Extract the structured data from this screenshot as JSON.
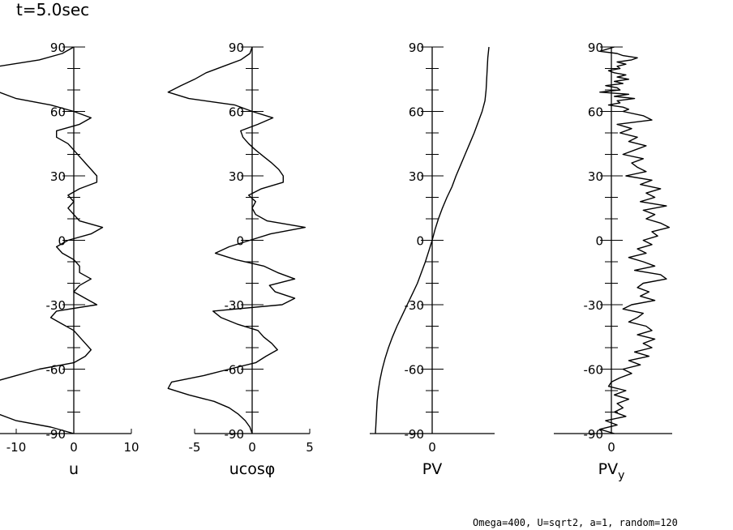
{
  "figure": {
    "title": "t=5.0sec",
    "footer": "Omega=400, U=sqrt2, a=1, random=120"
  },
  "chart_data": [
    {
      "type": "line",
      "id": "u",
      "xlabel": "u",
      "ylabel": "",
      "xlim": [
        -10,
        10
      ],
      "ylim": [
        -90,
        90
      ],
      "x_ticks": [
        "-10",
        "0",
        "10"
      ],
      "y_ticks": [
        "90",
        "60",
        "30",
        "0",
        "-30",
        "-60",
        "-90"
      ],
      "series": [
        {
          "name": "u",
          "lat": [
            90,
            87,
            84,
            81,
            78,
            75,
            72,
            69,
            66,
            63,
            60,
            57,
            54,
            51,
            48,
            45,
            42,
            39,
            36,
            33,
            30,
            27,
            24,
            21,
            18,
            15,
            12,
            9,
            6,
            3,
            0,
            -3,
            -6,
            -9,
            -12,
            -15,
            -18,
            -21,
            -24,
            -27,
            -30,
            -33,
            -36,
            -39,
            -42,
            -45,
            -48,
            -51,
            -54,
            -57,
            -60,
            -63,
            -66,
            -69,
            -72,
            -75,
            -78,
            -81,
            -84,
            -87,
            -90
          ],
          "values": [
            0,
            -2,
            -6,
            -13,
            -14,
            -14,
            -14,
            -13,
            -10,
            -4,
            0,
            3,
            1,
            -3,
            -3,
            -1,
            0,
            1,
            2,
            3,
            4,
            4,
            1,
            -1,
            0,
            -1,
            0,
            1,
            5,
            3,
            -1,
            -3,
            -2,
            0,
            1,
            1,
            3,
            1,
            0,
            2,
            4,
            -3,
            -4,
            -2,
            0,
            1,
            2,
            3,
            2,
            0,
            -6,
            -10,
            -14,
            -14,
            -14,
            -14,
            -14,
            -13,
            -10,
            -4,
            0
          ]
        }
      ]
    },
    {
      "type": "line",
      "id": "ucos",
      "xlabel": "ucosφ",
      "ylabel": "",
      "xlim": [
        -5,
        5
      ],
      "ylim": [
        -90,
        90
      ],
      "x_ticks": [
        "-5",
        "0",
        "5"
      ],
      "y_ticks": [
        "90",
        "60",
        "30",
        "0",
        "-30",
        "-60",
        "-90"
      ],
      "series": [
        {
          "name": "ucosφ",
          "lat": [
            90,
            87,
            84,
            81,
            78,
            75,
            72,
            69,
            66,
            63,
            60,
            57,
            54,
            51,
            48,
            45,
            42,
            39,
            36,
            33,
            30,
            27,
            24,
            21,
            18,
            15,
            12,
            9,
            6,
            3,
            0,
            -3,
            -6,
            -9,
            -12,
            -15,
            -18,
            -21,
            -24,
            -27,
            -30,
            -33,
            -36,
            -39,
            -42,
            -45,
            -48,
            -51,
            -54,
            -57,
            -60,
            -63,
            -66,
            -69,
            -72,
            -75,
            -78,
            -81,
            -84,
            -87,
            -90
          ],
          "values": [
            0,
            -0.2,
            -1,
            -2.5,
            -4,
            -5,
            -6.2,
            -7.3,
            -5.5,
            -1.5,
            0,
            1.8,
            0.5,
            -1,
            -0.8,
            -0.3,
            0.3,
            1,
            1.7,
            2.3,
            2.7,
            2.7,
            0.8,
            -0.3,
            0.3,
            0,
            0.3,
            1.3,
            4.6,
            1.6,
            -0.2,
            -2,
            -3.2,
            -1.4,
            1,
            2.2,
            3.7,
            1.5,
            2,
            3.7,
            2.6,
            -3.4,
            -2.7,
            -1.3,
            0.5,
            1,
            1.7,
            2.2,
            1.2,
            0.3,
            -2,
            -4.2,
            -7,
            -7.3,
            -5.5,
            -3.3,
            -2,
            -1.2,
            -0.6,
            -0.2,
            0
          ]
        }
      ]
    },
    {
      "type": "line",
      "id": "pv",
      "xlabel": "PV",
      "ylabel": "",
      "xlim": [
        -1.1,
        1.1
      ],
      "ylim": [
        -90,
        90
      ],
      "x_ticks": [
        "0"
      ],
      "y_ticks": [
        "90",
        "60",
        "30",
        "0",
        "-30",
        "-60",
        "-90"
      ],
      "series": [
        {
          "name": "PV",
          "lat": [
            90,
            85,
            80,
            75,
            70,
            65,
            60,
            55,
            50,
            45,
            40,
            35,
            30,
            25,
            20,
            15,
            10,
            5,
            0,
            -5,
            -10,
            -15,
            -20,
            -25,
            -30,
            -35,
            -40,
            -45,
            -50,
            -55,
            -60,
            -65,
            -70,
            -75,
            -80,
            -85,
            -90
          ],
          "values": [
            1,
            0.98,
            0.97,
            0.96,
            0.95,
            0.93,
            0.88,
            0.81,
            0.74,
            0.66,
            0.58,
            0.5,
            0.42,
            0.35,
            0.26,
            0.18,
            0.11,
            0.05,
            0,
            -0.06,
            -0.12,
            -0.19,
            -0.26,
            -0.35,
            -0.44,
            -0.53,
            -0.62,
            -0.7,
            -0.77,
            -0.83,
            -0.88,
            -0.92,
            -0.95,
            -0.97,
            -0.98,
            -0.99,
            -1
          ]
        }
      ]
    },
    {
      "type": "line",
      "id": "pvy",
      "xlabel": "PV",
      "xlabel_subscript": "y",
      "ylabel": "",
      "xlim": [
        -1,
        1.05
      ],
      "ylim": [
        -90,
        90
      ],
      "x_ticks": [
        "0"
      ],
      "y_ticks": [
        "90",
        "60",
        "30",
        "0",
        "-30",
        "-60",
        "-90"
      ],
      "series": [
        {
          "name": "PVy",
          "lat": [
            90,
            88,
            87,
            86,
            85,
            84,
            83,
            82,
            81,
            80,
            79,
            78,
            77,
            76,
            75,
            74,
            73,
            72,
            71,
            70,
            69,
            68,
            67,
            66,
            65,
            64,
            63,
            62,
            61,
            60,
            58,
            56,
            54,
            52,
            50,
            48,
            46,
            44,
            42,
            40,
            38,
            36,
            34,
            32,
            30,
            28,
            26,
            24,
            22,
            20,
            18,
            16,
            14,
            12,
            10,
            8,
            6,
            4,
            2,
            0,
            -2,
            -4,
            -6,
            -8,
            -10,
            -12,
            -14,
            -16,
            -18,
            -20,
            -22,
            -24,
            -26,
            -28,
            -30,
            -32,
            -34,
            -36,
            -38,
            -40,
            -42,
            -44,
            -46,
            -48,
            -50,
            -52,
            -54,
            -56,
            -58,
            -60,
            -62,
            -64,
            -66,
            -68,
            -70,
            -72,
            -74,
            -76,
            -78,
            -80,
            -82,
            -84,
            -86,
            -88,
            -90
          ],
          "values": [
            0.05,
            -0.2,
            0.1,
            0.2,
            0.45,
            0.35,
            0.1,
            0.25,
            0.1,
            0.15,
            -0.05,
            0.05,
            0.25,
            0.1,
            0.3,
            0.05,
            0.2,
            -0.1,
            0.1,
            0.15,
            -0.2,
            0.3,
            0.05,
            0.4,
            0.1,
            0.15,
            -0.05,
            0.2,
            0.3,
            0.2,
            0.55,
            0.7,
            0.1,
            0.35,
            0.15,
            0.45,
            0.3,
            0.6,
            0.4,
            0.2,
            0.55,
            0.35,
            0.45,
            0.6,
            0.25,
            0.7,
            0.5,
            0.85,
            0.6,
            0.75,
            0.5,
            0.95,
            0.55,
            0.75,
            0.6,
            0.85,
            1.0,
            0.7,
            0.8,
            0.55,
            0.7,
            0.45,
            0.6,
            0.3,
            0.55,
            0.75,
            0.4,
            0.85,
            0.95,
            0.55,
            0.45,
            0.65,
            0.5,
            0.75,
            0.35,
            0.2,
            0.55,
            0.45,
            0.3,
            0.6,
            0.7,
            0.45,
            0.75,
            0.55,
            0.7,
            0.4,
            0.65,
            0.3,
            0.5,
            0.2,
            0.35,
            0.15,
            0.0,
            -0.05,
            0.25,
            0.05,
            0.3,
            0.1,
            0.2,
            0.05,
            0.25,
            -0.1,
            0.1,
            -0.2,
            0.05
          ]
        }
      ]
    }
  ]
}
